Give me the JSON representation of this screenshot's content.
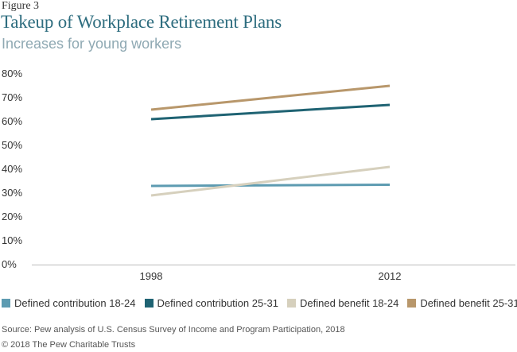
{
  "figure_label": "Figure 3",
  "title": "Takeup of Workplace Retirement Plans",
  "subtitle": "Increases for young workers",
  "source": "Source: Pew analysis of U.S. Census Survey of Income and Program Participation, 2018",
  "copyright": "© 2018 The Pew Charitable Trusts",
  "chart_data": {
    "type": "line",
    "x": [
      "1998",
      "2012"
    ],
    "ylim": [
      0,
      80
    ],
    "yticks": [
      "0%",
      "10%",
      "20%",
      "30%",
      "40%",
      "50%",
      "60%",
      "70%",
      "80%"
    ],
    "grid": false,
    "legend_position": "bottom",
    "series": [
      {
        "name": "Defined contribution 18-24",
        "color": "#5d9bb1",
        "values": [
          33,
          33.5
        ]
      },
      {
        "name": "Defined contribution 25-31",
        "color": "#1f6373",
        "values": [
          61,
          67
        ]
      },
      {
        "name": "Defined benefit 18-24",
        "color": "#d6d0bd",
        "values": [
          29,
          41
        ]
      },
      {
        "name": "Defined benefit 25-31",
        "color": "#b8976b",
        "values": [
          65,
          75
        ]
      }
    ]
  }
}
